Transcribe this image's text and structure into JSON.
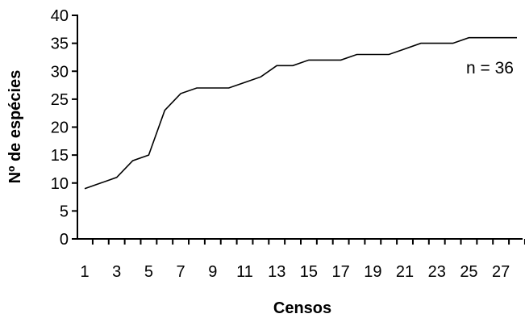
{
  "chart_data": {
    "type": "line",
    "xlabel": "Censos",
    "ylabel": "Nº de espécies",
    "annotation": "n = 36",
    "ylim": [
      0,
      40
    ],
    "yticks": [
      0,
      5,
      10,
      15,
      20,
      25,
      30,
      35,
      40
    ],
    "xlim": [
      1,
      28
    ],
    "xtick_labels": [
      1,
      3,
      5,
      7,
      9,
      11,
      13,
      15,
      17,
      19,
      21,
      23,
      25,
      27
    ],
    "grid": false,
    "legend": "none",
    "line_color": "#000000",
    "x": [
      1,
      2,
      3,
      4,
      5,
      6,
      7,
      8,
      9,
      10,
      11,
      12,
      13,
      14,
      15,
      16,
      17,
      18,
      19,
      20,
      21,
      22,
      23,
      24,
      25,
      26,
      27,
      28
    ],
    "values": [
      9,
      10,
      11,
      14,
      15,
      23,
      26,
      27,
      27,
      27,
      28,
      29,
      31,
      31,
      32,
      32,
      32,
      33,
      33,
      33,
      34,
      35,
      35,
      35,
      36,
      36,
      36,
      36
    ]
  }
}
